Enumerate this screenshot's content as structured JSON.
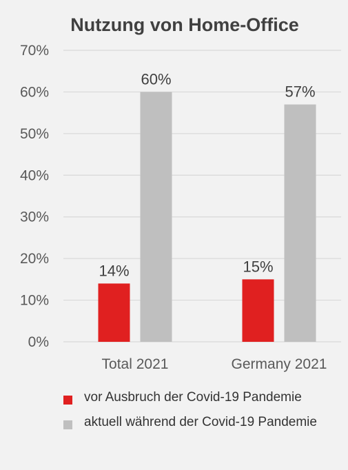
{
  "chart_data": {
    "type": "bar",
    "title": "Nutzung von Home-Office",
    "categories": [
      "Total 2021",
      "Germany 2021"
    ],
    "series": [
      {
        "name": "vor Ausbruch der Covid-19 Pandemie",
        "values": [
          14,
          15
        ],
        "labels": [
          "14%",
          "15%"
        ],
        "color": "#e02020"
      },
      {
        "name": "aktuell während der Covid-19 Pandemie",
        "values": [
          60,
          57
        ],
        "labels": [
          "60%",
          "57%"
        ],
        "color": "#bfbfbf"
      }
    ],
    "ylim": [
      0,
      70
    ],
    "yticks": [
      "0%",
      "10%",
      "20%",
      "30%",
      "40%",
      "50%",
      "60%",
      "70%"
    ],
    "grid": true,
    "legend": "bottom"
  }
}
